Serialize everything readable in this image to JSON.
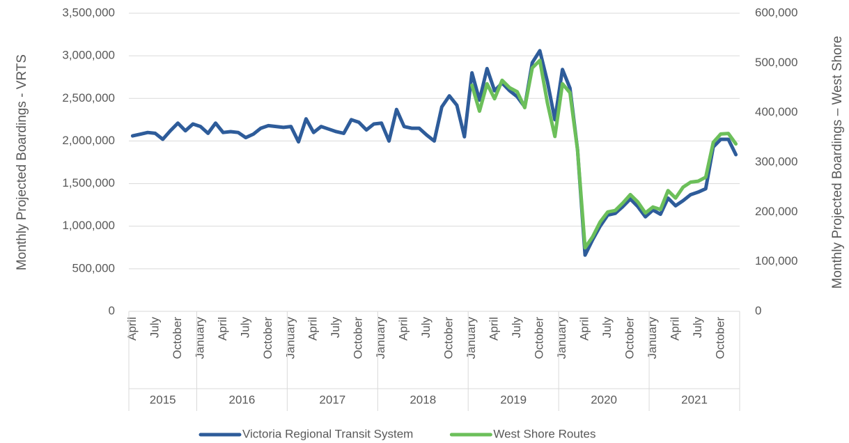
{
  "chart_data": {
    "type": "line",
    "y_label": "Monthly Projected Boardings - VRTS",
    "y2_label": "Monthly Projected Boardings – West Shore",
    "categories": [
      "April",
      null,
      null,
      "July",
      null,
      null,
      "October",
      null,
      null,
      "January",
      null,
      null,
      "April",
      null,
      null,
      "July",
      null,
      null,
      "October",
      null,
      null,
      "January",
      null,
      null,
      "April",
      null,
      null,
      "July",
      null,
      null,
      "October",
      null,
      null,
      "January",
      null,
      null,
      "April",
      null,
      null,
      "July",
      null,
      null,
      "October",
      null,
      null,
      "January",
      null,
      null,
      "April",
      null,
      null,
      "July",
      null,
      null,
      "October",
      null,
      null,
      "January",
      null,
      null,
      "April",
      null,
      null,
      "July",
      null,
      null,
      "October",
      null,
      null,
      "January",
      null,
      null,
      "April",
      null,
      null,
      "July",
      null,
      null,
      "October",
      null,
      null
    ],
    "years": [
      "2015",
      "2016",
      "2017",
      "2018",
      "2019",
      "2020",
      "2021"
    ],
    "series": [
      {
        "name": "Victoria Regional Transit System",
        "color": "#2e5c9a",
        "axis": "y",
        "values": [
          2060000,
          2080000,
          2100000,
          2090000,
          2020000,
          2120000,
          2210000,
          2120000,
          2200000,
          2170000,
          2090000,
          2210000,
          2100000,
          2110000,
          2100000,
          2040000,
          2080000,
          2150000,
          2180000,
          2170000,
          2160000,
          2170000,
          1990000,
          2260000,
          2100000,
          2170000,
          2140000,
          2110000,
          2090000,
          2250000,
          2220000,
          2130000,
          2200000,
          2210000,
          2000000,
          2370000,
          2170000,
          2150000,
          2150000,
          2070000,
          2000000,
          2400000,
          2530000,
          2420000,
          2050000,
          2800000,
          2480000,
          2850000,
          2590000,
          2680000,
          2590000,
          2520000,
          2400000,
          2920000,
          3060000,
          2700000,
          2250000,
          2840000,
          2620000,
          1900000,
          660000,
          840000,
          1000000,
          1130000,
          1150000,
          1230000,
          1320000,
          1230000,
          1110000,
          1190000,
          1140000,
          1330000,
          1240000,
          1300000,
          1370000,
          1400000,
          1440000,
          1930000,
          2020000,
          2020000,
          1840000
        ]
      },
      {
        "name": "West Shore Routes",
        "color": "#6cbf5a",
        "axis": "y2",
        "values": [
          null,
          null,
          null,
          null,
          null,
          null,
          null,
          null,
          null,
          null,
          null,
          null,
          null,
          null,
          null,
          null,
          null,
          null,
          null,
          null,
          null,
          null,
          null,
          null,
          null,
          null,
          null,
          null,
          null,
          null,
          null,
          null,
          null,
          null,
          null,
          null,
          null,
          null,
          null,
          null,
          null,
          null,
          null,
          null,
          null,
          455000,
          403000,
          458000,
          428000,
          465000,
          450000,
          442000,
          410000,
          490000,
          505000,
          420000,
          352000,
          458000,
          440000,
          325000,
          128000,
          150000,
          180000,
          200000,
          203000,
          218000,
          235000,
          220000,
          198000,
          210000,
          205000,
          243000,
          228000,
          250000,
          260000,
          262000,
          270000,
          340000,
          357000,
          358000,
          337000
        ]
      }
    ],
    "ylim": [
      0,
      3500000
    ],
    "yticks": [
      0,
      {
        "value": 500000,
        "label": "500,000"
      },
      {
        "value": 1000000,
        "label": "1,000,000"
      },
      {
        "value": 1500000,
        "label": "1,500,000"
      },
      {
        "value": 2000000,
        "label": "2,000,000"
      },
      {
        "value": 2500000,
        "label": "2,500,000"
      },
      {
        "value": 3000000,
        "label": "3,000,000"
      },
      {
        "value": 3500000,
        "label": "3,500,000"
      }
    ],
    "y2lim": [
      0,
      600000
    ],
    "y2ticks": [
      0,
      {
        "value": 100000,
        "label": "100,000"
      },
      {
        "value": 200000,
        "label": "200,000"
      },
      {
        "value": 300000,
        "label": "300,000"
      },
      {
        "value": 400000,
        "label": "400,000"
      },
      {
        "value": 500000,
        "label": "500,000"
      },
      {
        "value": 600000,
        "label": "600,000"
      }
    ],
    "grid": true,
    "legend": "bottom"
  }
}
